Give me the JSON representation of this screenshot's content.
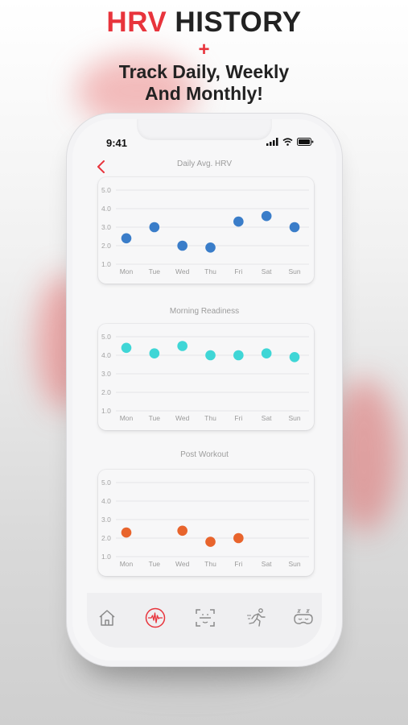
{
  "header": {
    "title_accent": "HRV",
    "title_rest": " HISTORY",
    "plus": "+",
    "subtitle_line1": "Track Daily, Weekly",
    "subtitle_line2": "And Monthly!"
  },
  "status_bar": {
    "time": "9:41",
    "icons": [
      "signal-icon",
      "wifi-icon",
      "battery-icon"
    ]
  },
  "nav": {
    "back_icon": "chevron-left-icon"
  },
  "colors": {
    "accent": "#e8343c",
    "daily": "#3a7dc9",
    "morning": "#3fd6d6",
    "workout": "#e8642c"
  },
  "chart_data": [
    {
      "type": "scatter",
      "title": "Daily Avg. HRV",
      "categories": [
        "Mon",
        "Tue",
        "Wed",
        "Thu",
        "Fri",
        "Sat",
        "Sun"
      ],
      "values": [
        2.4,
        3.0,
        2.0,
        1.9,
        3.3,
        3.6,
        3.0
      ],
      "y_ticks": [
        "5.0",
        "4.0",
        "3.0",
        "2.0",
        "1.0"
      ],
      "ylim": [
        1.0,
        5.0
      ],
      "grid": true
    },
    {
      "type": "scatter",
      "title": "Morning Readiness",
      "categories": [
        "Mon",
        "Tue",
        "Wed",
        "Thu",
        "Fri",
        "Sat",
        "Sun"
      ],
      "values": [
        4.4,
        4.1,
        4.5,
        4.0,
        4.0,
        4.1,
        3.9
      ],
      "y_ticks": [
        "5.0",
        "4.0",
        "3.0",
        "2.0",
        "1.0"
      ],
      "ylim": [
        1.0,
        5.0
      ],
      "grid": true
    },
    {
      "type": "scatter",
      "title": "Post Workout",
      "categories": [
        "Mon",
        "Tue",
        "Wed",
        "Thu",
        "Fri",
        "Sat",
        "Sun"
      ],
      "values": [
        2.3,
        null,
        2.4,
        1.8,
        2.0,
        null,
        null
      ],
      "y_ticks": [
        "5.0",
        "4.0",
        "3.0",
        "2.0",
        "1.0"
      ],
      "ylim": [
        1.0,
        5.0
      ],
      "grid": true
    }
  ],
  "tab_bar": [
    {
      "icon": "home-icon",
      "active": false
    },
    {
      "icon": "heartbeat-icon",
      "active": true
    },
    {
      "icon": "face-scan-icon",
      "active": false
    },
    {
      "icon": "running-icon",
      "active": false
    },
    {
      "icon": "sleep-mask-icon",
      "active": false
    }
  ]
}
